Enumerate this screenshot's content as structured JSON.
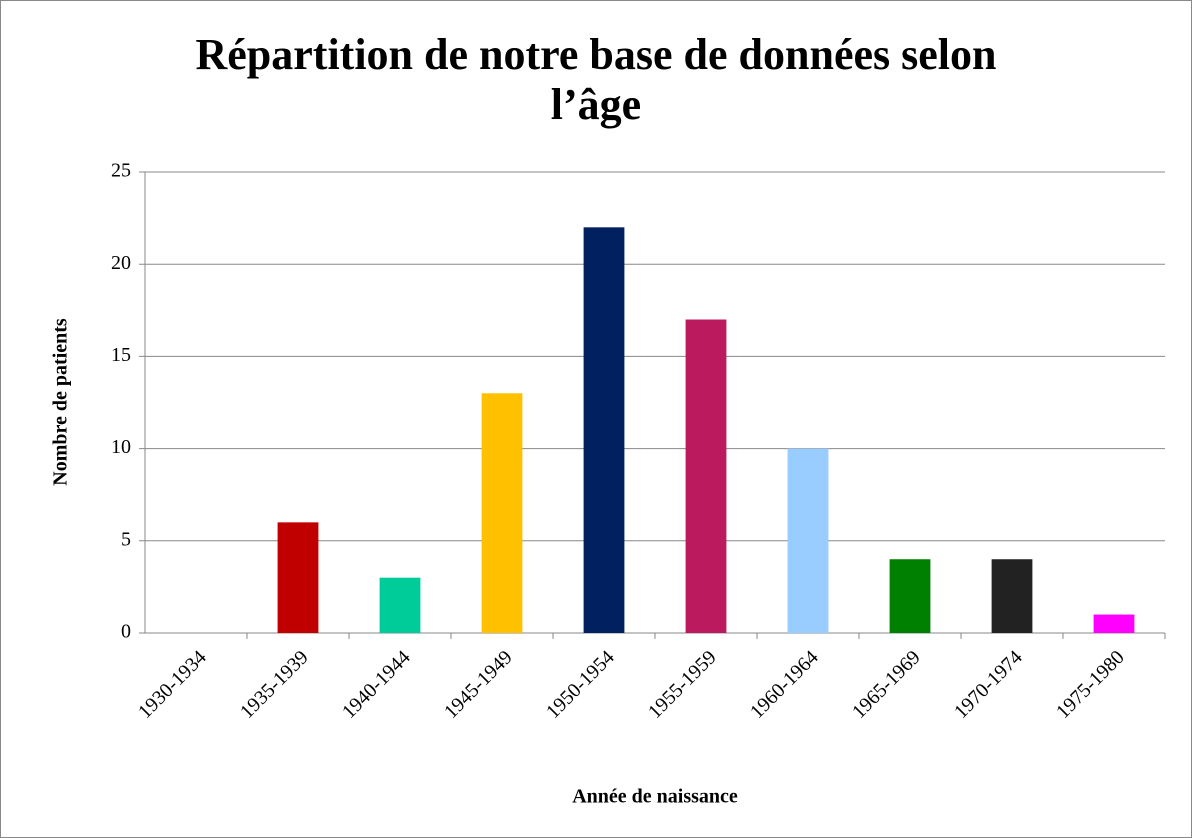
{
  "chart_data": {
    "type": "bar",
    "title": "Répartition de notre base de données selon l’âge",
    "x_label": "Année de naissance",
    "y_label": "Nombre de patients",
    "categories": [
      "1930-1934",
      "1935-1939",
      "1940-1944",
      "1945-1949",
      "1950-1954",
      "1955-1959",
      "1960-1964",
      "1965-1969",
      "1970-1974",
      "1975-1980"
    ],
    "values": [
      0,
      6,
      3,
      13,
      22,
      17,
      10,
      4,
      4,
      1
    ],
    "colors": [
      null,
      "#c00000",
      "#00cc99",
      "#ffc000",
      "#002060",
      "#bb1a5f",
      "#99ccff",
      "#008000",
      "#222222",
      "#ff00ff"
    ],
    "ylim": [
      0,
      25
    ],
    "yticks": [
      0,
      5,
      10,
      15,
      20,
      25
    ],
    "grid": true
  }
}
